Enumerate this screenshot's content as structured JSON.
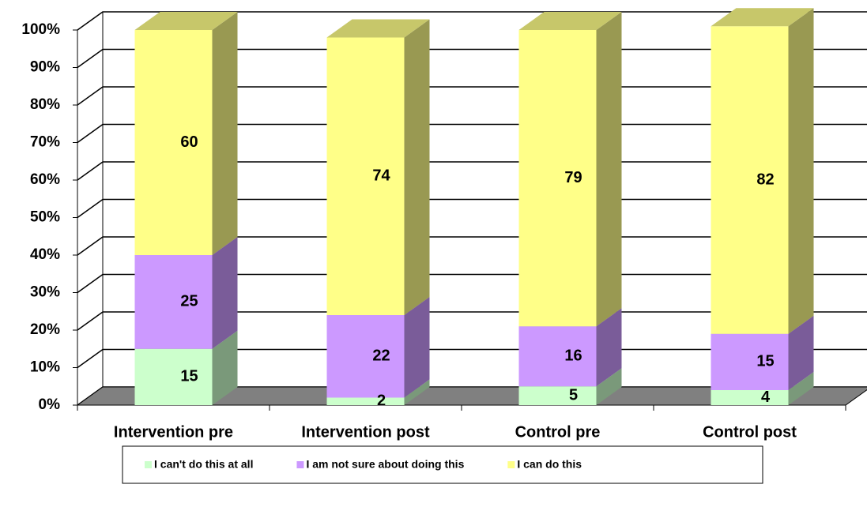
{
  "chart_data": {
    "type": "bar3d_stacked",
    "categories": [
      "Intervention pre",
      "Intervention post",
      "Control pre",
      "Control post"
    ],
    "series": [
      {
        "name": "I can't do this at all",
        "color": "#ccffcc",
        "values": [
          15,
          2,
          5,
          4
        ]
      },
      {
        "name": "I am not sure about doing this",
        "color": "#cc99ff",
        "values": [
          25,
          22,
          16,
          15
        ]
      },
      {
        "name": "I can do this",
        "color": "#ffff88",
        "values": [
          60,
          74,
          79,
          82
        ]
      }
    ],
    "ylim": [
      0,
      100
    ],
    "yticks": [
      {
        "value": 0,
        "label": "0%"
      },
      {
        "value": 10,
        "label": "10%"
      },
      {
        "value": 20,
        "label": "20%"
      },
      {
        "value": 30,
        "label": "30%"
      },
      {
        "value": 40,
        "label": "40%"
      },
      {
        "value": 50,
        "label": "50%"
      },
      {
        "value": 60,
        "label": "60%"
      },
      {
        "value": 70,
        "label": "70%"
      },
      {
        "value": 80,
        "label": "80%"
      },
      {
        "value": 90,
        "label": "90%"
      },
      {
        "value": 100,
        "label": "100%"
      }
    ],
    "grid": true,
    "legend": "bottom"
  }
}
